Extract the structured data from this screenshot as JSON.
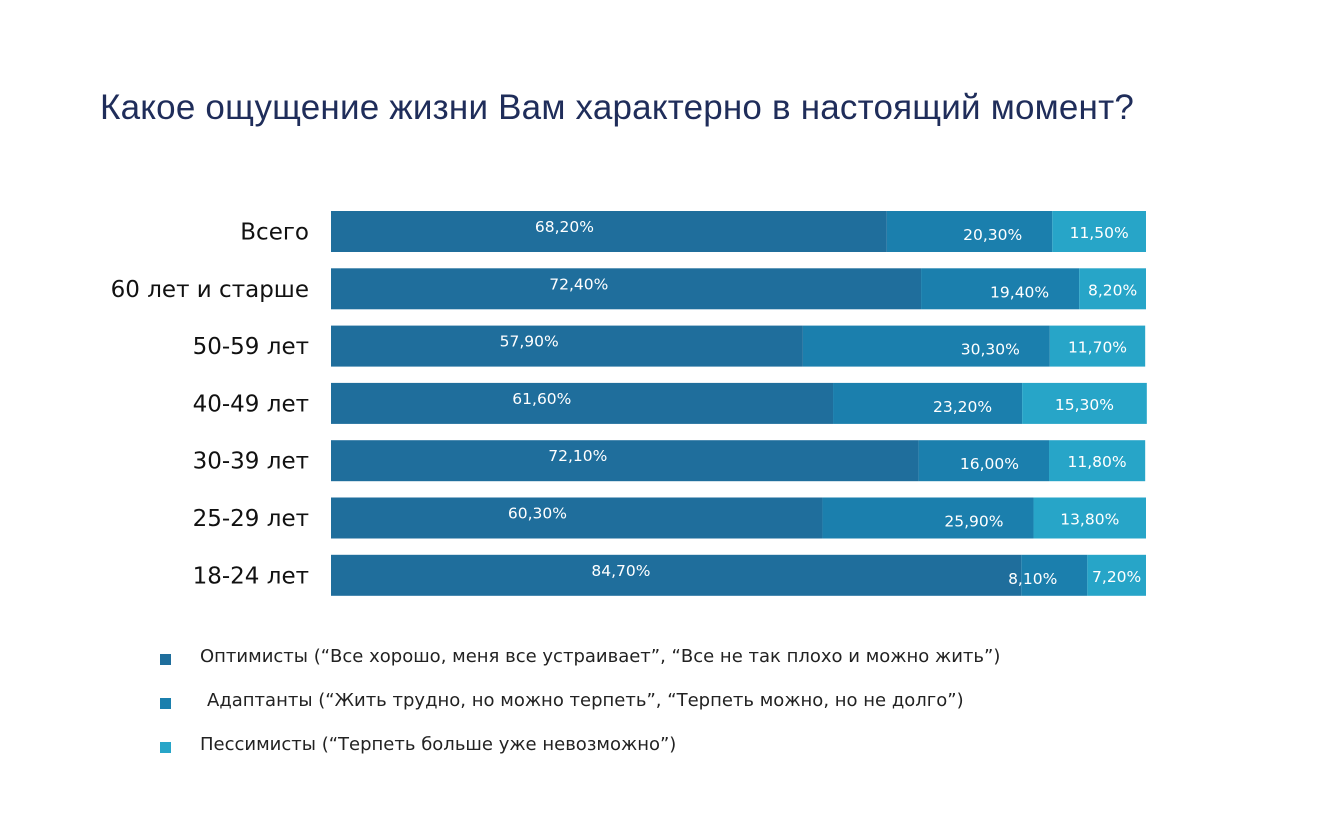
{
  "chart_data": {
    "type": "bar",
    "orientation": "horizontal",
    "stacked": true,
    "title": "Какое ощущение жизни Вам характерно в настоящий момент?",
    "categories": [
      "Всего",
      "60 лет и старше",
      "50-59 лет",
      "40-49 лет",
      "30-39 лет",
      "25-29 лет",
      "18-24 лет"
    ],
    "series": [
      {
        "name": "Оптимисты (“Все хорошо, меня все устраивает”, “Все не так плохо и можно жить”)",
        "color": "#1f6e9c",
        "values": [
          68.2,
          72.4,
          57.9,
          61.6,
          72.1,
          60.3,
          84.7
        ],
        "labels": [
          "68,20%",
          "72,40%",
          "57,90%",
          "61,60%",
          "72,10%",
          "60,30%",
          "84,70%"
        ]
      },
      {
        "name": "Адаптанты (“Жить трудно, но можно терпеть”, “Терпеть можно, но не долго”)",
        "color": "#1b7fad",
        "values": [
          20.3,
          19.4,
          30.3,
          23.2,
          16.0,
          25.9,
          8.1
        ],
        "labels": [
          "20,30%",
          "19,40%",
          "30,30%",
          "23,20%",
          "16,00%",
          "25,90%",
          "8,10%"
        ]
      },
      {
        "name": "Пессимисты (“Терпеть больше уже невозможно”)",
        "color": "#27a5c8",
        "values": [
          11.5,
          8.2,
          11.7,
          15.3,
          11.8,
          13.8,
          7.2
        ],
        "labels": [
          "11,50%",
          "8,20%",
          "11,70%",
          "15,30%",
          "11,80%",
          "13,80%",
          "7,20%"
        ]
      }
    ],
    "xlim": [
      0,
      100
    ],
    "legend_position": "bottom-left"
  },
  "legend": {
    "items": [
      {
        "label": "Оптимисты (“Все хорошо, меня все устраивает”,  “Все не так плохо и можно жить”)",
        "color": "#1f6e9c"
      },
      {
        "label": "Адаптанты (“Жить трудно, но можно терпеть”, “Терпеть можно, но не долго”)",
        "color": "#1b7fad"
      },
      {
        "label": "Пессимисты (“Терпеть больше уже невозможно”)",
        "color": "#27a5c8"
      }
    ]
  }
}
